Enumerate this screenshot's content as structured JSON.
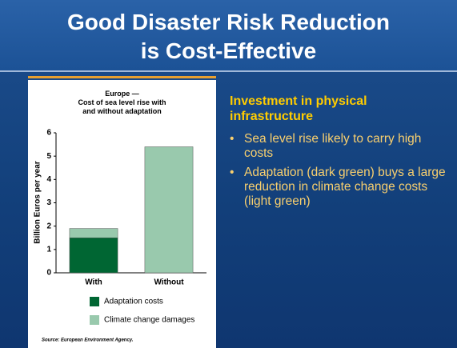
{
  "slide": {
    "title": "Good Disaster Risk Reduction\nis Cost-Effective",
    "heading": "Investment in physical infrastructure",
    "bullets": [
      "Sea level rise likely to carry high costs",
      "Adaptation (dark green) buys a large reduction in climate change costs (light green)"
    ],
    "source": "Source: European Environment Agency."
  },
  "chart_data": {
    "type": "bar",
    "stacked": true,
    "title": "Europe —\nCost of sea level rise with\nand without adaptation",
    "y_label": "Billion Euros per year",
    "categories": [
      "With",
      "Without"
    ],
    "series": [
      {
        "name": "Adaptation costs",
        "color": "#006633",
        "values": [
          1.5,
          0
        ]
      },
      {
        "name": "Climate change damages",
        "color": "#99c9ad",
        "values": [
          0.4,
          5.4
        ]
      }
    ],
    "ylim": [
      0,
      6
    ],
    "yticks": [
      0,
      1,
      2,
      3,
      4,
      5,
      6
    ]
  }
}
